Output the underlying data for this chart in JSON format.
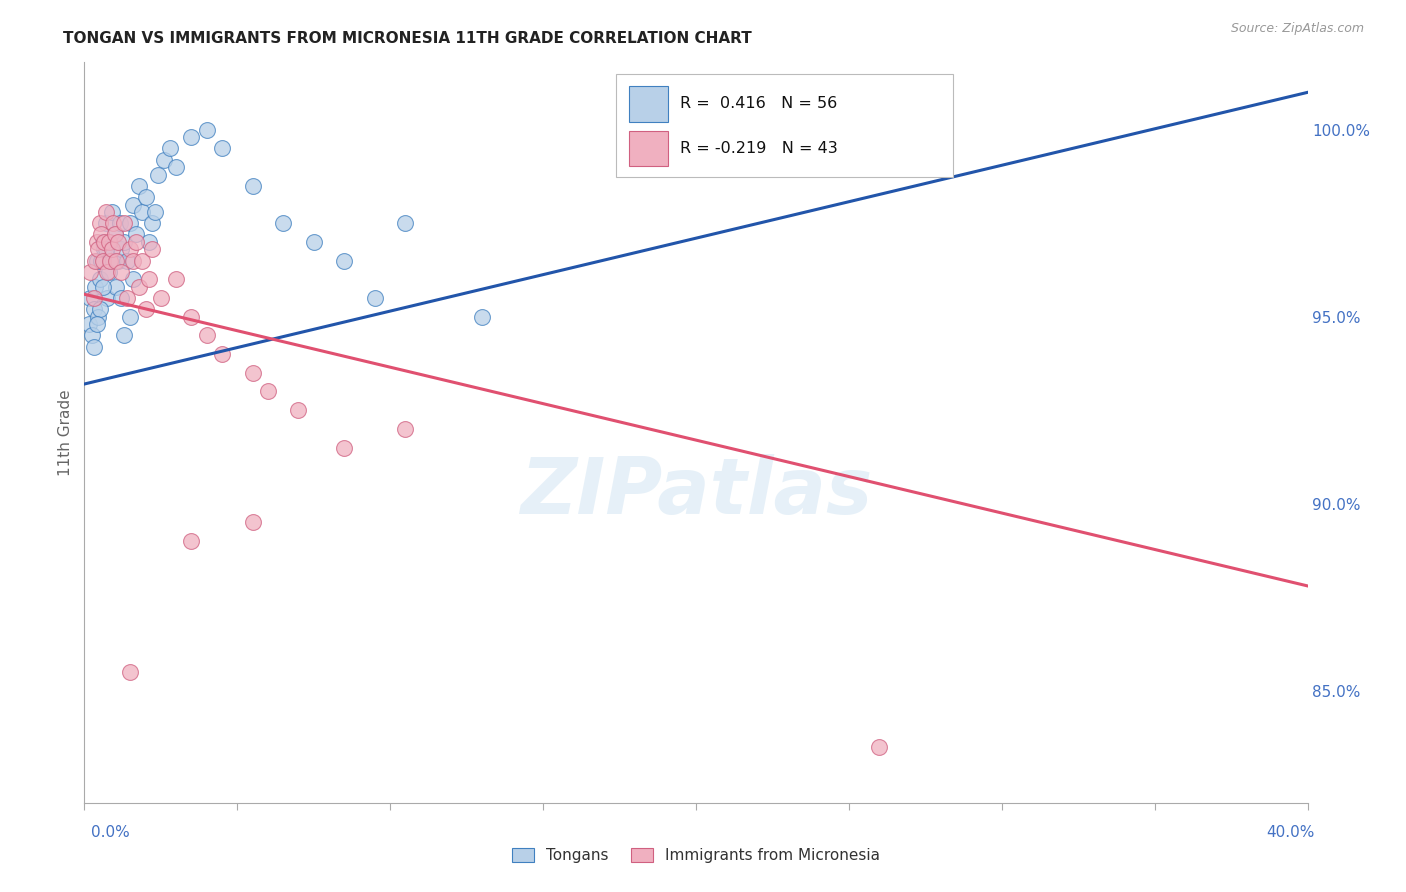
{
  "title": "TONGAN VS IMMIGRANTS FROM MICRONESIA 11TH GRADE CORRELATION CHART",
  "source": "Source: ZipAtlas.com",
  "ylabel": "11th Grade",
  "right_ytick_labels": [
    "85.0%",
    "90.0%",
    "95.0%",
    "100.0%"
  ],
  "right_yticks": [
    85.0,
    90.0,
    95.0,
    100.0
  ],
  "xmin": 0.0,
  "xmax": 40.0,
  "ymin": 82.0,
  "ymax": 101.8,
  "legend1_text": "R =  0.416   N = 56",
  "legend2_text": "R = -0.219   N = 43",
  "legend_label1": "Tongans",
  "legend_label2": "Immigrants from Micronesia",
  "watermark": "ZIPatlas",
  "blue_fill": "#b8d0e8",
  "blue_edge": "#4080c0",
  "pink_fill": "#f0b0c0",
  "pink_edge": "#d06080",
  "blue_line": "#2255aa",
  "pink_line": "#e05070",
  "blue_line_x": [
    0.0,
    40.0
  ],
  "blue_line_y": [
    93.2,
    101.0
  ],
  "pink_line_x": [
    0.0,
    40.0
  ],
  "pink_line_y": [
    95.6,
    87.8
  ],
  "tongans_x": [
    0.15,
    0.2,
    0.25,
    0.3,
    0.35,
    0.4,
    0.45,
    0.5,
    0.55,
    0.6,
    0.65,
    0.7,
    0.75,
    0.8,
    0.85,
    0.9,
    0.95,
    1.0,
    1.05,
    1.1,
    1.15,
    1.2,
    1.3,
    1.4,
    1.5,
    1.6,
    1.7,
    1.8,
    1.9,
    2.0,
    2.1,
    2.2,
    2.4,
    2.6,
    2.8,
    3.0,
    3.5,
    4.0,
    4.5,
    5.5,
    6.5,
    7.5,
    8.5,
    9.5,
    10.5,
    13.0,
    2.3,
    0.5,
    0.6,
    0.7,
    0.3,
    0.4,
    1.2,
    1.3,
    1.5,
    1.6
  ],
  "tongans_y": [
    94.8,
    95.5,
    94.5,
    95.2,
    95.8,
    96.5,
    95.0,
    96.0,
    96.5,
    97.0,
    96.8,
    97.5,
    95.5,
    96.2,
    97.0,
    97.8,
    96.5,
    97.2,
    95.8,
    96.5,
    97.5,
    96.8,
    97.0,
    96.5,
    97.5,
    98.0,
    97.2,
    98.5,
    97.8,
    98.2,
    97.0,
    97.5,
    98.8,
    99.2,
    99.5,
    99.0,
    99.8,
    100.0,
    99.5,
    98.5,
    97.5,
    97.0,
    96.5,
    95.5,
    97.5,
    95.0,
    97.8,
    95.2,
    95.8,
    96.8,
    94.2,
    94.8,
    95.5,
    94.5,
    95.0,
    96.0
  ],
  "micronesia_x": [
    0.2,
    0.3,
    0.35,
    0.4,
    0.45,
    0.5,
    0.55,
    0.6,
    0.65,
    0.7,
    0.75,
    0.8,
    0.85,
    0.9,
    0.95,
    1.0,
    1.05,
    1.1,
    1.2,
    1.3,
    1.4,
    1.5,
    1.6,
    1.7,
    1.8,
    1.9,
    2.0,
    2.1,
    2.2,
    2.5,
    3.0,
    3.5,
    4.0,
    4.5,
    5.5,
    6.0,
    7.0,
    8.5,
    10.5,
    3.5,
    5.5,
    26.0,
    1.5
  ],
  "micronesia_y": [
    96.2,
    95.5,
    96.5,
    97.0,
    96.8,
    97.5,
    97.2,
    96.5,
    97.0,
    97.8,
    96.2,
    97.0,
    96.5,
    96.8,
    97.5,
    97.2,
    96.5,
    97.0,
    96.2,
    97.5,
    95.5,
    96.8,
    96.5,
    97.0,
    95.8,
    96.5,
    95.2,
    96.0,
    96.8,
    95.5,
    96.0,
    95.0,
    94.5,
    94.0,
    93.5,
    93.0,
    92.5,
    91.5,
    92.0,
    89.0,
    89.5,
    83.5,
    85.5
  ]
}
